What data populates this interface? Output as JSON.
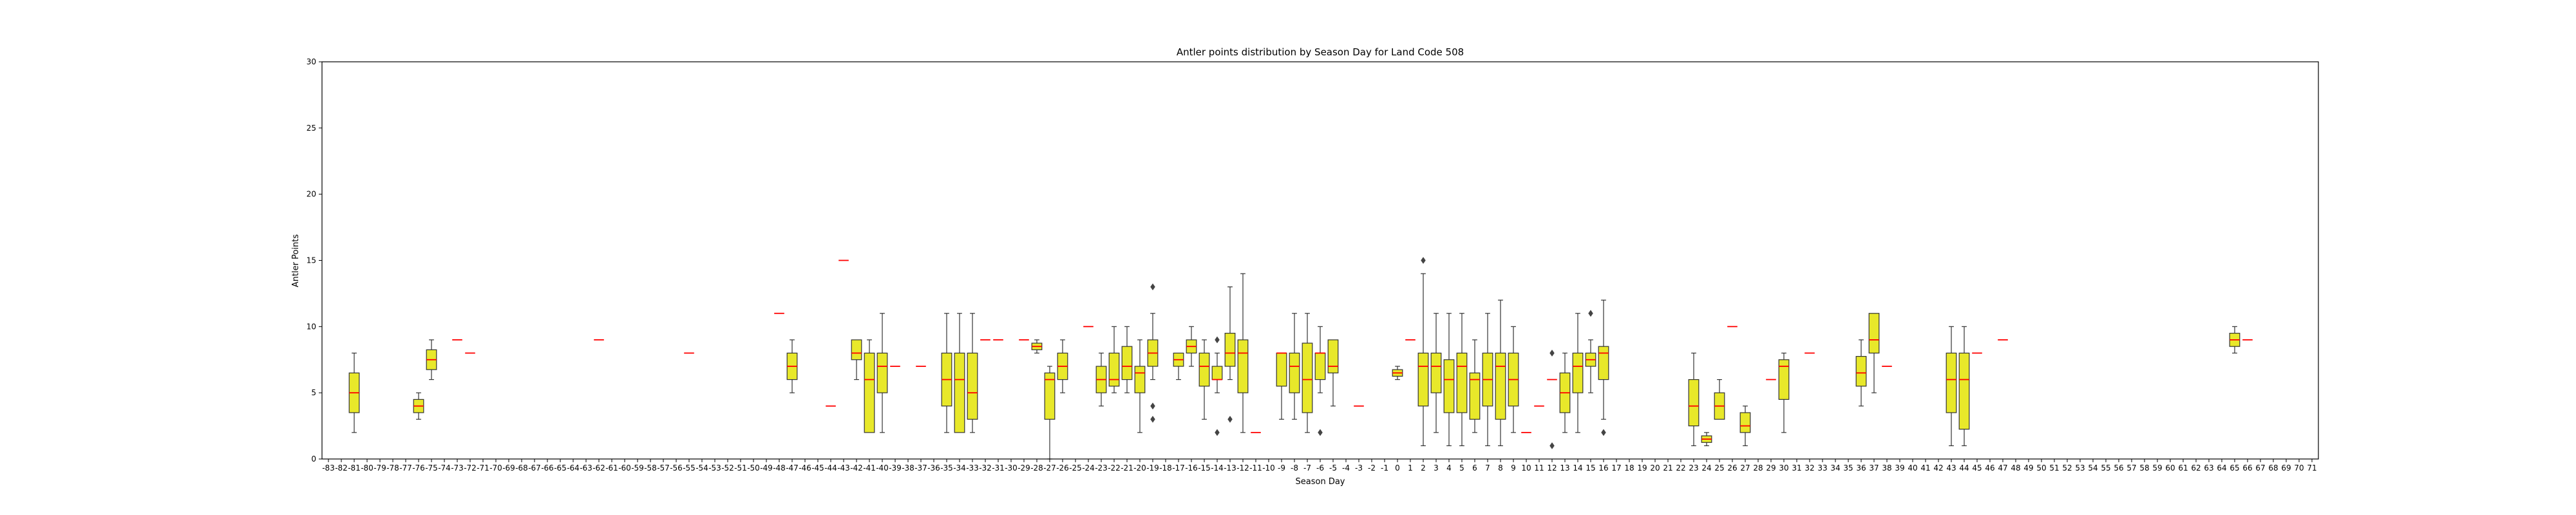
{
  "chart_data": {
    "type": "box",
    "title": "Antler points distribution by Season Day for Land Code 508",
    "xlabel": "Season Day",
    "ylabel": "Antler Points",
    "ylim": [
      0,
      30
    ],
    "yticks": [
      0,
      5,
      10,
      15,
      20,
      25,
      30
    ],
    "grid": false,
    "legend": "none",
    "colors": {
      "box_fill": "#e8e82a",
      "box_edge": "#333333",
      "median": "#ff0000",
      "whisker": "#333333",
      "flier": "#444444"
    },
    "categories": [
      "-83",
      "-82",
      "-81",
      "-80",
      "-79",
      "-78",
      "-77",
      "-76",
      "-75",
      "-74",
      "-73",
      "-72",
      "-71",
      "-70",
      "-69",
      "-68",
      "-67",
      "-66",
      "-65",
      "-64",
      "-63",
      "-62",
      "-61",
      "-60",
      "-59",
      "-58",
      "-57",
      "-56",
      "-55",
      "-54",
      "-53",
      "-52",
      "-51",
      "-50",
      "-49",
      "-48",
      "-47",
      "-46",
      "-45",
      "-44",
      "-43",
      "-42",
      "-41",
      "-40",
      "-39",
      "-38",
      "-37",
      "-36",
      "-35",
      "-34",
      "-33",
      "-32",
      "-31",
      "-30",
      "-29",
      "-28",
      "-27",
      "-26",
      "-25",
      "-24",
      "-23",
      "-22",
      "-21",
      "-20",
      "-19",
      "-18",
      "-17",
      "-16",
      "-15",
      "-14",
      "-13",
      "-12",
      "-11",
      "-10",
      "-9",
      "-8",
      "-7",
      "-6",
      "-5",
      "-4",
      "-3",
      "-2",
      "-1",
      "0",
      "1",
      "2",
      "3",
      "4",
      "5",
      "6",
      "7",
      "8",
      "9",
      "10",
      "11",
      "12",
      "13",
      "14",
      "15",
      "16",
      "17",
      "18",
      "19",
      "20",
      "21",
      "22",
      "23",
      "24",
      "25",
      "26",
      "27",
      "28",
      "29",
      "30",
      "31",
      "32",
      "33",
      "34",
      "35",
      "36",
      "37",
      "38",
      "39",
      "40",
      "41",
      "42",
      "43",
      "44",
      "45",
      "46",
      "47",
      "48",
      "49",
      "50",
      "51",
      "52",
      "53",
      "54",
      "55",
      "56",
      "57",
      "58",
      "59",
      "60",
      "61",
      "62",
      "63",
      "64",
      "65",
      "66",
      "67",
      "68",
      "69",
      "70",
      "71"
    ],
    "boxes": [
      {
        "x": "-81",
        "low": 2,
        "q1": 3.5,
        "median": 5,
        "q3": 6.5,
        "high": 8,
        "fliers": []
      },
      {
        "x": "-76",
        "low": 3,
        "q1": 3.5,
        "median": 4,
        "q3": 4.5,
        "high": 5,
        "fliers": []
      },
      {
        "x": "-75",
        "low": 6,
        "q1": 6.75,
        "median": 7.5,
        "q3": 8.25,
        "high": 9,
        "fliers": []
      },
      {
        "x": "-73",
        "low": 9,
        "q1": 9,
        "median": 9,
        "q3": 9,
        "high": 9,
        "fliers": []
      },
      {
        "x": "-72",
        "low": 8,
        "q1": 8,
        "median": 8,
        "q3": 8,
        "high": 8,
        "fliers": []
      },
      {
        "x": "-62",
        "low": 9,
        "q1": 9,
        "median": 9,
        "q3": 9,
        "high": 9,
        "fliers": []
      },
      {
        "x": "-55",
        "low": 8,
        "q1": 8,
        "median": 8,
        "q3": 8,
        "high": 8,
        "fliers": []
      },
      {
        "x": "-48",
        "low": 11,
        "q1": 11,
        "median": 11,
        "q3": 11,
        "high": 11,
        "fliers": []
      },
      {
        "x": "-47",
        "low": 5,
        "q1": 6,
        "median": 7,
        "q3": 8,
        "high": 9,
        "fliers": []
      },
      {
        "x": "-44",
        "low": 4,
        "q1": 4,
        "median": 4,
        "q3": 4,
        "high": 4,
        "fliers": []
      },
      {
        "x": "-43",
        "low": 15,
        "q1": 15,
        "median": 15,
        "q3": 15,
        "high": 15,
        "fliers": []
      },
      {
        "x": "-42",
        "low": 6,
        "q1": 7.5,
        "median": 8,
        "q3": 9,
        "high": 9,
        "fliers": []
      },
      {
        "x": "-41",
        "low": 2,
        "q1": 2,
        "median": 6,
        "q3": 8,
        "high": 9,
        "fliers": []
      },
      {
        "x": "-40",
        "low": 2,
        "q1": 5,
        "median": 7,
        "q3": 8,
        "high": 11,
        "fliers": []
      },
      {
        "x": "-39",
        "low": 7,
        "q1": 7,
        "median": 7,
        "q3": 7,
        "high": 7,
        "fliers": []
      },
      {
        "x": "-37",
        "low": 7,
        "q1": 7,
        "median": 7,
        "q3": 7,
        "high": 7,
        "fliers": []
      },
      {
        "x": "-35",
        "low": 2,
        "q1": 4,
        "median": 6,
        "q3": 8,
        "high": 11,
        "fliers": []
      },
      {
        "x": "-34",
        "low": 2,
        "q1": 2,
        "median": 6,
        "q3": 8,
        "high": 11,
        "fliers": []
      },
      {
        "x": "-33",
        "low": 2,
        "q1": 3,
        "median": 5,
        "q3": 8,
        "high": 11,
        "fliers": []
      },
      {
        "x": "-32",
        "low": 9,
        "q1": 9,
        "median": 9,
        "q3": 9,
        "high": 9,
        "fliers": []
      },
      {
        "x": "-31",
        "low": 9,
        "q1": 9,
        "median": 9,
        "q3": 9,
        "high": 9,
        "fliers": []
      },
      {
        "x": "-29",
        "low": 9,
        "q1": 9,
        "median": 9,
        "q3": 9,
        "high": 9,
        "fliers": []
      },
      {
        "x": "-28",
        "low": 8,
        "q1": 8.25,
        "median": 8.5,
        "q3": 8.75,
        "high": 9,
        "fliers": []
      },
      {
        "x": "-27",
        "low": 0,
        "q1": 3,
        "median": 6,
        "q3": 6.5,
        "high": 7,
        "fliers": []
      },
      {
        "x": "-26",
        "low": 5,
        "q1": 6,
        "median": 7,
        "q3": 8,
        "high": 9,
        "fliers": []
      },
      {
        "x": "-24",
        "low": 10,
        "q1": 10,
        "median": 10,
        "q3": 10,
        "high": 10,
        "fliers": []
      },
      {
        "x": "-23",
        "low": 4,
        "q1": 5,
        "median": 6,
        "q3": 7,
        "high": 8,
        "fliers": []
      },
      {
        "x": "-22",
        "low": 5,
        "q1": 5.5,
        "median": 6,
        "q3": 8,
        "high": 10,
        "fliers": []
      },
      {
        "x": "-21",
        "low": 5,
        "q1": 6,
        "median": 7,
        "q3": 8.5,
        "high": 10,
        "fliers": []
      },
      {
        "x": "-20",
        "low": 2,
        "q1": 5,
        "median": 6.5,
        "q3": 7,
        "high": 9,
        "fliers": []
      },
      {
        "x": "-19",
        "low": 6,
        "q1": 7,
        "median": 8,
        "q3": 9,
        "high": 11,
        "fliers": [
          13,
          4,
          3
        ]
      },
      {
        "x": "-17",
        "low": 6,
        "q1": 7,
        "median": 7.5,
        "q3": 8,
        "high": 8,
        "fliers": []
      },
      {
        "x": "-16",
        "low": 7,
        "q1": 8,
        "median": 8.5,
        "q3": 9,
        "high": 10,
        "fliers": []
      },
      {
        "x": "-15",
        "low": 3,
        "q1": 5.5,
        "median": 7,
        "q3": 8,
        "high": 9,
        "fliers": []
      },
      {
        "x": "-14",
        "low": 5,
        "q1": 6,
        "median": 6,
        "q3": 7,
        "high": 8,
        "fliers": [
          2,
          9
        ]
      },
      {
        "x": "-13",
        "low": 6,
        "q1": 7,
        "median": 8,
        "q3": 9.5,
        "high": 13,
        "fliers": [
          3
        ]
      },
      {
        "x": "-12",
        "low": 2,
        "q1": 5,
        "median": 8,
        "q3": 9,
        "high": 14,
        "fliers": []
      },
      {
        "x": "-11",
        "low": 2,
        "q1": 2,
        "median": 2,
        "q3": 2,
        "high": 2,
        "fliers": []
      },
      {
        "x": "-9",
        "low": 3,
        "q1": 5.5,
        "median": 8,
        "q3": 8,
        "high": 8,
        "fliers": []
      },
      {
        "x": "-8",
        "low": 3,
        "q1": 5,
        "median": 7,
        "q3": 8,
        "high": 11,
        "fliers": []
      },
      {
        "x": "-7",
        "low": 2,
        "q1": 3.5,
        "median": 6,
        "q3": 8.75,
        "high": 11,
        "fliers": []
      },
      {
        "x": "-6",
        "low": 5,
        "q1": 6,
        "median": 8,
        "q3": 8,
        "high": 10,
        "fliers": [
          2
        ]
      },
      {
        "x": "-5",
        "low": 4,
        "q1": 6.5,
        "median": 7,
        "q3": 9,
        "high": 9,
        "fliers": []
      },
      {
        "x": "-3",
        "low": 4,
        "q1": 4,
        "median": 4,
        "q3": 4,
        "high": 4,
        "fliers": []
      },
      {
        "x": "0",
        "low": 6,
        "q1": 6.25,
        "median": 6.5,
        "q3": 6.75,
        "high": 7,
        "fliers": []
      },
      {
        "x": "1",
        "low": 9,
        "q1": 9,
        "median": 9,
        "q3": 9,
        "high": 9,
        "fliers": []
      },
      {
        "x": "2",
        "low": 1,
        "q1": 4,
        "median": 7,
        "q3": 8,
        "high": 14,
        "fliers": [
          15
        ]
      },
      {
        "x": "3",
        "low": 2,
        "q1": 5,
        "median": 7,
        "q3": 8,
        "high": 11,
        "fliers": []
      },
      {
        "x": "4",
        "low": 1,
        "q1": 3.5,
        "median": 6,
        "q3": 7.5,
        "high": 11,
        "fliers": []
      },
      {
        "x": "5",
        "low": 1,
        "q1": 3.5,
        "median": 7,
        "q3": 8,
        "high": 11,
        "fliers": []
      },
      {
        "x": "6",
        "low": 2,
        "q1": 3,
        "median": 6,
        "q3": 6.5,
        "high": 9,
        "fliers": []
      },
      {
        "x": "7",
        "low": 1,
        "q1": 4,
        "median": 6,
        "q3": 8,
        "high": 11,
        "fliers": []
      },
      {
        "x": "8",
        "low": 1,
        "q1": 3,
        "median": 7,
        "q3": 8,
        "high": 12,
        "fliers": []
      },
      {
        "x": "9",
        "low": 2,
        "q1": 4,
        "median": 6,
        "q3": 8,
        "high": 10,
        "fliers": []
      },
      {
        "x": "10",
        "low": 2,
        "q1": 2,
        "median": 2,
        "q3": 2,
        "high": 2,
        "fliers": []
      },
      {
        "x": "11",
        "low": 4,
        "q1": 4,
        "median": 4,
        "q3": 4,
        "high": 4,
        "fliers": []
      },
      {
        "x": "12",
        "low": 6,
        "q1": 6,
        "median": 6,
        "q3": 6,
        "high": 6,
        "fliers": [
          8,
          1
        ]
      },
      {
        "x": "13",
        "low": 2,
        "q1": 3.5,
        "median": 5,
        "q3": 6.5,
        "high": 8,
        "fliers": []
      },
      {
        "x": "14",
        "low": 2,
        "q1": 5,
        "median": 7,
        "q3": 8,
        "high": 11,
        "fliers": []
      },
      {
        "x": "15",
        "low": 5,
        "q1": 7,
        "median": 7.5,
        "q3": 8,
        "high": 9,
        "fliers": [
          11
        ]
      },
      {
        "x": "16",
        "low": 3,
        "q1": 6,
        "median": 8,
        "q3": 8.5,
        "high": 12,
        "fliers": [
          2
        ]
      },
      {
        "x": "23",
        "low": 1,
        "q1": 2.5,
        "median": 4,
        "q3": 6,
        "high": 8,
        "fliers": []
      },
      {
        "x": "24",
        "low": 1,
        "q1": 1.25,
        "median": 1.5,
        "q3": 1.75,
        "high": 2,
        "fliers": []
      },
      {
        "x": "25",
        "low": 3,
        "q1": 3,
        "median": 4,
        "q3": 5,
        "high": 6,
        "fliers": []
      },
      {
        "x": "26",
        "low": 10,
        "q1": 10,
        "median": 10,
        "q3": 10,
        "high": 10,
        "fliers": []
      },
      {
        "x": "27",
        "low": 1,
        "q1": 2,
        "median": 2.5,
        "q3": 3.5,
        "high": 4,
        "fliers": []
      },
      {
        "x": "29",
        "low": 6,
        "q1": 6,
        "median": 6,
        "q3": 6,
        "high": 6,
        "fliers": []
      },
      {
        "x": "30",
        "low": 2,
        "q1": 4.5,
        "median": 7,
        "q3": 7.5,
        "high": 8,
        "fliers": []
      },
      {
        "x": "32",
        "low": 8,
        "q1": 8,
        "median": 8,
        "q3": 8,
        "high": 8,
        "fliers": []
      },
      {
        "x": "36",
        "low": 4,
        "q1": 5.5,
        "median": 6.5,
        "q3": 7.75,
        "high": 9,
        "fliers": []
      },
      {
        "x": "37",
        "low": 5,
        "q1": 8,
        "median": 9,
        "q3": 11,
        "high": 11,
        "fliers": []
      },
      {
        "x": "38",
        "low": 7,
        "q1": 7,
        "median": 7,
        "q3": 7,
        "high": 7,
        "fliers": []
      },
      {
        "x": "43",
        "low": 1,
        "q1": 3.5,
        "median": 6,
        "q3": 8,
        "high": 10,
        "fliers": []
      },
      {
        "x": "44",
        "low": 1,
        "q1": 2.25,
        "median": 6,
        "q3": 8,
        "high": 10,
        "fliers": []
      },
      {
        "x": "45",
        "low": 8,
        "q1": 8,
        "median": 8,
        "q3": 8,
        "high": 8,
        "fliers": []
      },
      {
        "x": "47",
        "low": 9,
        "q1": 9,
        "median": 9,
        "q3": 9,
        "high": 9,
        "fliers": []
      },
      {
        "x": "65",
        "low": 8,
        "q1": 8.5,
        "median": 9,
        "q3": 9.5,
        "high": 10,
        "fliers": []
      },
      {
        "x": "66",
        "low": 9,
        "q1": 9,
        "median": 9,
        "q3": 9,
        "high": 9,
        "fliers": []
      }
    ]
  }
}
